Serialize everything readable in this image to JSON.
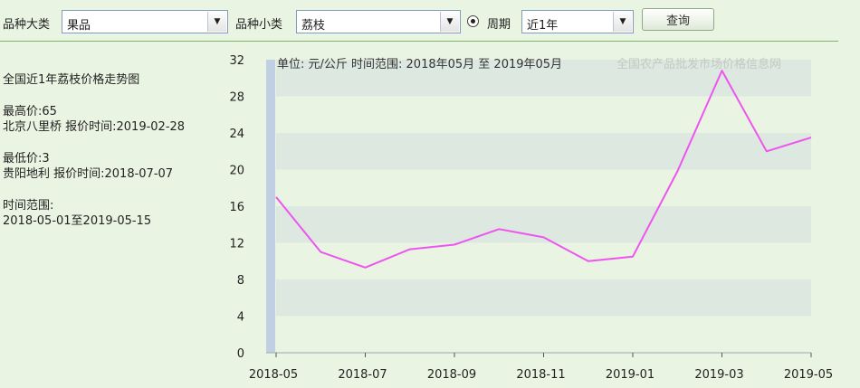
{
  "filters": {
    "category_label": "品种大类",
    "category_value": "果品",
    "subcategory_label": "品种小类",
    "subcategory_value": "荔枝",
    "period_label": "周期",
    "period_value": "近1年",
    "query_button": "查询"
  },
  "info": {
    "title": "全国近1年荔枝价格走势图",
    "max_label": "最高价:65",
    "max_detail": "北京八里桥 报价时间:2019-02-28",
    "min_label": "最低价:3",
    "min_detail": "贵阳地利 报价时间:2018-07-07",
    "range_label": "时间范围:",
    "range_value": "2018-05-01至2019-05-15"
  },
  "chart_data": {
    "type": "line",
    "subtitle": "单位: 元/公斤 时间范围: 2018年05月 至 2019年05月",
    "watermark": "全国农产品批发市场价格信息网",
    "x": [
      "2018-05",
      "2018-06",
      "2018-07",
      "2018-08",
      "2018-09",
      "2018-10",
      "2018-11",
      "2018-12",
      "2019-01",
      "2019-02",
      "2019-03",
      "2019-04",
      "2019-05"
    ],
    "x_ticks": [
      "2018-05",
      "2018-07",
      "2018-09",
      "2018-11",
      "2019-01",
      "2019-03",
      "2019-05"
    ],
    "y_ticks": [
      0,
      4,
      8,
      12,
      16,
      20,
      24,
      28,
      32
    ],
    "ylim": [
      0,
      32
    ],
    "series": [
      {
        "values": [
          17.0,
          11.0,
          9.3,
          11.3,
          11.8,
          13.5,
          12.6,
          10.0,
          10.5,
          19.8,
          30.8,
          22.0,
          23.5
        ],
        "color": "#ee55ee"
      }
    ],
    "colors": {
      "band": "#dde8e0",
      "axis_band": "#c0cfe2"
    }
  }
}
